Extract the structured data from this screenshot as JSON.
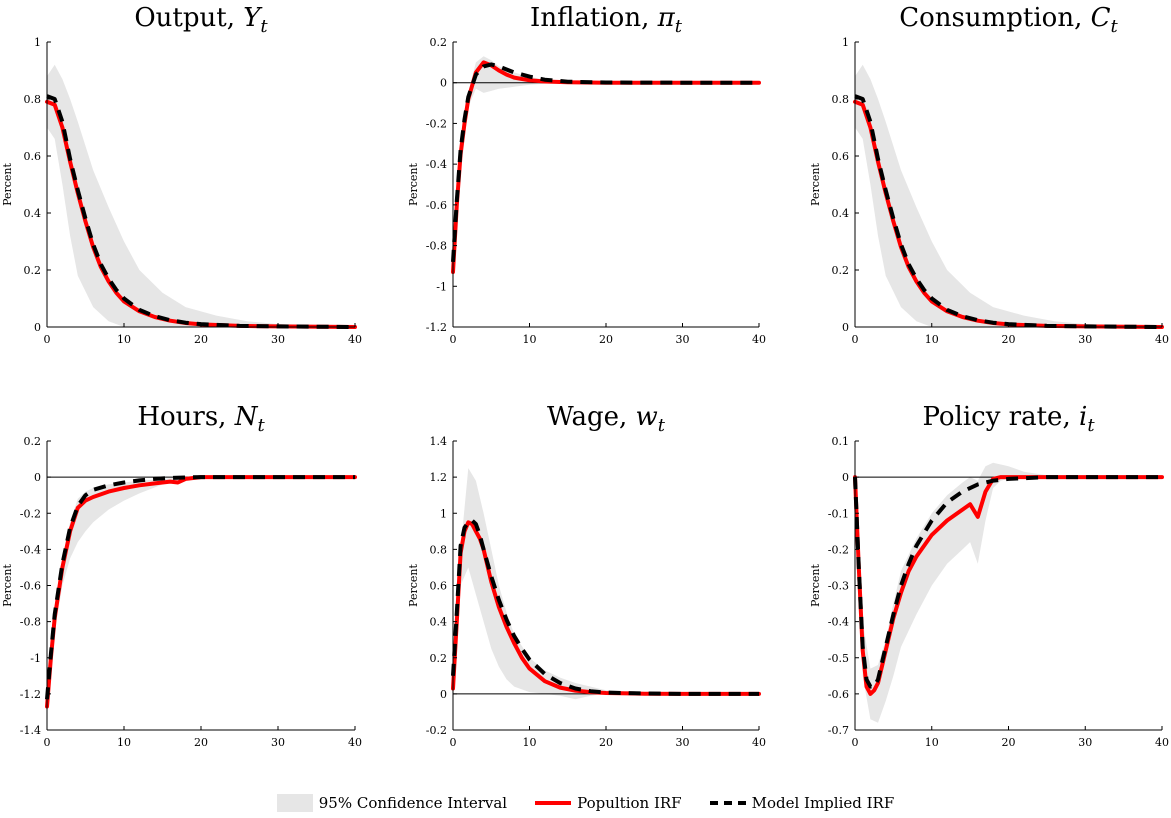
{
  "chart_data": [
    {
      "type": "line",
      "title": "Output, ",
      "title_sym": "Y",
      "title_sub": "t",
      "ylabel": "Percent",
      "xlim": [
        0,
        40
      ],
      "ylim": [
        0,
        1
      ],
      "xticks": [
        0,
        10,
        20,
        30,
        40
      ],
      "yticks": [
        0,
        0.2,
        0.4,
        0.6,
        0.8,
        1
      ],
      "zero_line": true,
      "ci_upper": {
        "x": [
          0,
          1,
          2,
          3,
          4,
          6,
          8,
          10,
          12,
          15,
          18,
          22,
          26,
          30,
          40
        ],
        "y": [
          0.88,
          0.92,
          0.87,
          0.8,
          0.72,
          0.55,
          0.42,
          0.3,
          0.2,
          0.12,
          0.07,
          0.04,
          0.02,
          0.01,
          0.0
        ]
      },
      "ci_lower": {
        "x": [
          0,
          1,
          2,
          3,
          4,
          6,
          8,
          10,
          12,
          15,
          18,
          22,
          26,
          30,
          40
        ],
        "y": [
          0.7,
          0.66,
          0.5,
          0.32,
          0.18,
          0.07,
          0.02,
          0.0,
          0.0,
          0.0,
          0.0,
          0.0,
          0.0,
          0.0,
          0.0
        ]
      },
      "series": [
        {
          "name": "Popultion IRF",
          "x": [
            0,
            1,
            2,
            3,
            4,
            5,
            6,
            7,
            8,
            9,
            10,
            12,
            14,
            16,
            18,
            20,
            25,
            30,
            40
          ],
          "y": [
            0.79,
            0.78,
            0.7,
            0.58,
            0.47,
            0.37,
            0.28,
            0.21,
            0.16,
            0.12,
            0.09,
            0.055,
            0.035,
            0.022,
            0.014,
            0.009,
            0.004,
            0.002,
            0.0
          ]
        },
        {
          "name": "Model Implied IRF",
          "x": [
            0,
            1,
            2,
            3,
            4,
            5,
            6,
            7,
            8,
            9,
            10,
            12,
            14,
            16,
            18,
            20,
            25,
            30,
            40
          ],
          "y": [
            0.81,
            0.8,
            0.72,
            0.59,
            0.48,
            0.38,
            0.29,
            0.22,
            0.17,
            0.13,
            0.1,
            0.06,
            0.038,
            0.024,
            0.015,
            0.01,
            0.004,
            0.002,
            0.0
          ]
        }
      ]
    },
    {
      "type": "line",
      "title": "Inflation, ",
      "title_sym": "π",
      "title_sub": "t",
      "ylabel": "Percent",
      "xlim": [
        0,
        40
      ],
      "ylim": [
        -1.2,
        0.2
      ],
      "xticks": [
        0,
        10,
        20,
        30,
        40
      ],
      "yticks": [
        -1.2,
        -1,
        -0.8,
        -0.6,
        -0.4,
        -0.2,
        0,
        0.2
      ],
      "zero_line": true,
      "ci_upper": {
        "x": [
          0,
          1,
          2,
          3,
          4,
          5,
          6,
          8,
          10,
          12,
          15,
          20,
          40
        ],
        "y": [
          -0.7,
          -0.3,
          -0.05,
          0.1,
          0.13,
          0.11,
          0.08,
          0.05,
          0.03,
          0.015,
          0.005,
          0.0,
          0.0
        ]
      },
      "ci_lower": {
        "x": [
          0,
          1,
          2,
          3,
          4,
          5,
          6,
          8,
          10,
          12,
          15,
          20,
          40
        ],
        "y": [
          -0.85,
          -0.45,
          -0.12,
          -0.03,
          -0.05,
          -0.04,
          -0.03,
          -0.02,
          -0.01,
          -0.005,
          0.0,
          0.0,
          0.0
        ]
      },
      "series": [
        {
          "name": "Popultion IRF",
          "x": [
            0,
            0.5,
            1,
            1.5,
            2,
            3,
            4,
            5,
            6,
            7,
            8,
            10,
            12,
            15,
            20,
            30,
            40
          ],
          "y": [
            -0.93,
            -0.6,
            -0.35,
            -0.2,
            -0.08,
            0.05,
            0.1,
            0.085,
            0.06,
            0.04,
            0.025,
            0.012,
            0.006,
            0.002,
            0.0,
            0.0,
            0.0
          ]
        },
        {
          "name": "Model Implied IRF",
          "x": [
            0,
            0.5,
            1,
            1.5,
            2,
            3,
            4,
            5,
            6,
            7,
            8,
            10,
            12,
            15,
            20,
            30,
            40
          ],
          "y": [
            -0.88,
            -0.58,
            -0.33,
            -0.18,
            -0.07,
            0.04,
            0.08,
            0.09,
            0.08,
            0.065,
            0.05,
            0.03,
            0.015,
            0.005,
            0.001,
            0.0,
            0.0
          ]
        }
      ]
    },
    {
      "type": "line",
      "title": "Consumption, ",
      "title_sym": "C",
      "title_sub": "t",
      "ylabel": "Percent",
      "xlim": [
        0,
        40
      ],
      "ylim": [
        0,
        1
      ],
      "xticks": [
        0,
        10,
        20,
        30,
        40
      ],
      "yticks": [
        0,
        0.2,
        0.4,
        0.6,
        0.8,
        1
      ],
      "zero_line": true,
      "ci_upper": {
        "x": [
          0,
          1,
          2,
          3,
          4,
          6,
          8,
          10,
          12,
          15,
          18,
          22,
          26,
          30,
          40
        ],
        "y": [
          0.88,
          0.92,
          0.87,
          0.8,
          0.72,
          0.55,
          0.42,
          0.3,
          0.2,
          0.12,
          0.07,
          0.04,
          0.02,
          0.01,
          0.0
        ]
      },
      "ci_lower": {
        "x": [
          0,
          1,
          2,
          3,
          4,
          6,
          8,
          10,
          12,
          15,
          18,
          22,
          26,
          30,
          40
        ],
        "y": [
          0.7,
          0.66,
          0.5,
          0.32,
          0.18,
          0.07,
          0.02,
          0.0,
          0.0,
          0.0,
          0.0,
          0.0,
          0.0,
          0.0,
          0.0
        ]
      },
      "series": [
        {
          "name": "Popultion IRF",
          "x": [
            0,
            1,
            2,
            3,
            4,
            5,
            6,
            7,
            8,
            9,
            10,
            12,
            14,
            16,
            18,
            20,
            25,
            30,
            40
          ],
          "y": [
            0.79,
            0.78,
            0.7,
            0.58,
            0.47,
            0.37,
            0.28,
            0.21,
            0.16,
            0.12,
            0.09,
            0.055,
            0.035,
            0.022,
            0.014,
            0.009,
            0.004,
            0.002,
            0.0
          ]
        },
        {
          "name": "Model Implied IRF",
          "x": [
            0,
            1,
            2,
            3,
            4,
            5,
            6,
            7,
            8,
            9,
            10,
            12,
            14,
            16,
            18,
            20,
            25,
            30,
            40
          ],
          "y": [
            0.81,
            0.8,
            0.72,
            0.59,
            0.48,
            0.38,
            0.29,
            0.22,
            0.17,
            0.13,
            0.1,
            0.06,
            0.038,
            0.024,
            0.015,
            0.01,
            0.004,
            0.002,
            0.0
          ]
        }
      ]
    },
    {
      "type": "line",
      "title": "Hours, ",
      "title_sym": "N",
      "title_sub": "t",
      "ylabel": "Percent",
      "xlim": [
        0,
        40
      ],
      "ylim": [
        -1.4,
        0.2
      ],
      "xticks": [
        0,
        10,
        20,
        30,
        40
      ],
      "yticks": [
        -1.4,
        -1.2,
        -1,
        -0.8,
        -0.6,
        -0.4,
        -0.2,
        0,
        0.2
      ],
      "zero_line": true,
      "ci_upper": {
        "x": [
          0,
          1,
          2,
          3,
          4,
          5,
          6,
          8,
          10,
          12,
          15,
          18,
          20,
          40
        ],
        "y": [
          -1.2,
          -0.75,
          -0.45,
          -0.25,
          -0.12,
          -0.08,
          -0.06,
          -0.04,
          -0.03,
          -0.02,
          -0.01,
          0.0,
          0.0,
          0.0
        ]
      },
      "ci_lower": {
        "x": [
          0,
          1,
          2,
          3,
          4,
          5,
          6,
          8,
          10,
          12,
          15,
          18,
          20,
          40
        ],
        "y": [
          -1.3,
          -0.85,
          -0.6,
          -0.45,
          -0.36,
          -0.3,
          -0.25,
          -0.18,
          -0.13,
          -0.09,
          -0.04,
          -0.01,
          0.0,
          0.0
        ]
      },
      "series": [
        {
          "name": "Popultion IRF",
          "x": [
            0,
            0.5,
            1,
            2,
            3,
            4,
            5,
            6,
            8,
            10,
            12,
            14,
            16,
            17,
            18,
            20,
            25,
            30,
            40
          ],
          "y": [
            -1.27,
            -1.0,
            -0.78,
            -0.5,
            -0.3,
            -0.17,
            -0.13,
            -0.11,
            -0.08,
            -0.06,
            -0.045,
            -0.035,
            -0.025,
            -0.03,
            -0.01,
            0.0,
            0.0,
            0.0,
            0.0
          ]
        },
        {
          "name": "Model Implied IRF",
          "x": [
            0,
            0.5,
            1,
            2,
            3,
            4,
            5,
            6,
            8,
            10,
            12,
            14,
            16,
            18,
            20,
            25,
            30,
            40
          ],
          "y": [
            -1.23,
            -0.98,
            -0.76,
            -0.48,
            -0.28,
            -0.16,
            -0.1,
            -0.07,
            -0.045,
            -0.03,
            -0.018,
            -0.01,
            -0.005,
            -0.002,
            0.0,
            0.0,
            0.0,
            0.0
          ]
        }
      ]
    },
    {
      "type": "line",
      "title": "Wage, ",
      "title_sym": "w",
      "title_sub": "t",
      "ylabel": "Percent",
      "xlim": [
        0,
        40
      ],
      "ylim": [
        -0.2,
        1.4
      ],
      "xticks": [
        0,
        10,
        20,
        30,
        40
      ],
      "yticks": [
        -0.2,
        0,
        0.2,
        0.4,
        0.6,
        0.8,
        1,
        1.2,
        1.4
      ],
      "zero_line": true,
      "ci_upper": {
        "x": [
          0,
          1,
          2,
          3,
          4,
          5,
          6,
          7,
          8,
          10,
          12,
          14,
          16,
          18,
          20,
          25,
          30,
          40
        ],
        "y": [
          0.05,
          0.8,
          1.25,
          1.18,
          1.0,
          0.8,
          0.6,
          0.45,
          0.33,
          0.2,
          0.13,
          0.09,
          0.06,
          0.04,
          0.02,
          0.01,
          0.0,
          0.0
        ]
      },
      "ci_lower": {
        "x": [
          0,
          1,
          2,
          3,
          4,
          5,
          6,
          7,
          8,
          10,
          12,
          14,
          16,
          18,
          20,
          25,
          30,
          40
        ],
        "y": [
          0.0,
          0.6,
          0.7,
          0.55,
          0.4,
          0.25,
          0.15,
          0.08,
          0.04,
          0.01,
          0.0,
          -0.01,
          -0.03,
          -0.01,
          0.0,
          0.0,
          0.0,
          0.0
        ]
      },
      "series": [
        {
          "name": "Popultion IRF",
          "x": [
            0,
            0.5,
            1,
            1.5,
            2,
            2.5,
            3,
            3.5,
            4,
            5,
            6,
            7,
            8,
            9,
            10,
            12,
            14,
            16,
            18,
            20,
            25,
            30,
            40
          ],
          "y": [
            0.03,
            0.4,
            0.78,
            0.9,
            0.95,
            0.94,
            0.9,
            0.86,
            0.8,
            0.62,
            0.48,
            0.37,
            0.28,
            0.2,
            0.14,
            0.07,
            0.035,
            0.018,
            0.01,
            0.005,
            0.001,
            0.0,
            0.0
          ]
        },
        {
          "name": "Model Implied IRF",
          "x": [
            0,
            0.5,
            1,
            1.5,
            2,
            2.5,
            3,
            3.5,
            4,
            5,
            6,
            7,
            8,
            9,
            10,
            12,
            14,
            16,
            18,
            20,
            25,
            30,
            40
          ],
          "y": [
            0.1,
            0.45,
            0.82,
            0.92,
            0.95,
            0.96,
            0.94,
            0.88,
            0.8,
            0.65,
            0.52,
            0.41,
            0.32,
            0.25,
            0.19,
            0.11,
            0.06,
            0.03,
            0.015,
            0.007,
            0.002,
            0.0,
            0.0
          ]
        }
      ]
    },
    {
      "type": "line",
      "title": "Policy rate, ",
      "title_sym": "i",
      "title_sub": "t",
      "ylabel": "Percent",
      "xlim": [
        0,
        40
      ],
      "ylim": [
        -0.7,
        0.1
      ],
      "xticks": [
        0,
        10,
        20,
        30,
        40
      ],
      "yticks": [
        -0.7,
        -0.6,
        -0.5,
        -0.4,
        -0.3,
        -0.2,
        -0.1,
        0,
        0.1
      ],
      "zero_line": true,
      "ci_upper": {
        "x": [
          0,
          0.5,
          1,
          2,
          3,
          4,
          5,
          6,
          8,
          10,
          12,
          14,
          15,
          16,
          17,
          18,
          19,
          20,
          22,
          25,
          30,
          40
        ],
        "y": [
          0.0,
          -0.2,
          -0.4,
          -0.53,
          -0.52,
          -0.45,
          -0.35,
          -0.26,
          -0.17,
          -0.1,
          -0.05,
          -0.015,
          0.0,
          -0.01,
          0.03,
          0.04,
          0.035,
          0.03,
          0.015,
          0.005,
          0.0,
          0.0
        ]
      },
      "ci_lower": {
        "x": [
          0,
          0.5,
          1,
          2,
          3,
          4,
          5,
          6,
          8,
          10,
          12,
          14,
          15,
          16,
          17,
          18,
          19,
          20,
          22,
          25,
          30,
          40
        ],
        "y": [
          0.0,
          -0.3,
          -0.55,
          -0.67,
          -0.68,
          -0.62,
          -0.55,
          -0.47,
          -0.38,
          -0.3,
          -0.24,
          -0.2,
          -0.18,
          -0.24,
          -0.12,
          -0.03,
          -0.01,
          -0.005,
          -0.003,
          0.0,
          0.0,
          0.0
        ]
      },
      "series": [
        {
          "name": "Popultion IRF",
          "x": [
            0,
            0.5,
            1,
            1.5,
            2,
            2.5,
            3,
            4,
            5,
            6,
            7,
            8,
            10,
            12,
            14,
            15,
            16,
            17,
            18,
            19,
            20,
            25,
            30,
            40
          ],
          "y": [
            0.0,
            -0.25,
            -0.48,
            -0.58,
            -0.6,
            -0.59,
            -0.57,
            -0.48,
            -0.39,
            -0.32,
            -0.26,
            -0.22,
            -0.16,
            -0.12,
            -0.09,
            -0.075,
            -0.11,
            -0.04,
            -0.005,
            0.0,
            0.0,
            0.0,
            0.0,
            0.0
          ]
        },
        {
          "name": "Model Implied IRF",
          "x": [
            0,
            0.5,
            1,
            1.5,
            2,
            2.5,
            3,
            4,
            5,
            6,
            7,
            8,
            10,
            12,
            14,
            16,
            18,
            20,
            25,
            30,
            40
          ],
          "y": [
            0.0,
            -0.25,
            -0.47,
            -0.56,
            -0.58,
            -0.58,
            -0.56,
            -0.47,
            -0.38,
            -0.3,
            -0.24,
            -0.19,
            -0.12,
            -0.07,
            -0.04,
            -0.02,
            -0.01,
            -0.005,
            0.0,
            0.0,
            0.0
          ]
        }
      ]
    }
  ],
  "legend": {
    "items": [
      "95% Confidence Interval",
      "Popultion IRF",
      "Model Implied IRF"
    ]
  },
  "colors": {
    "ci_band": "#e6e6e6",
    "population_irf": "#ff0000",
    "model_irf": "#000000",
    "zero_line": "#000000"
  }
}
